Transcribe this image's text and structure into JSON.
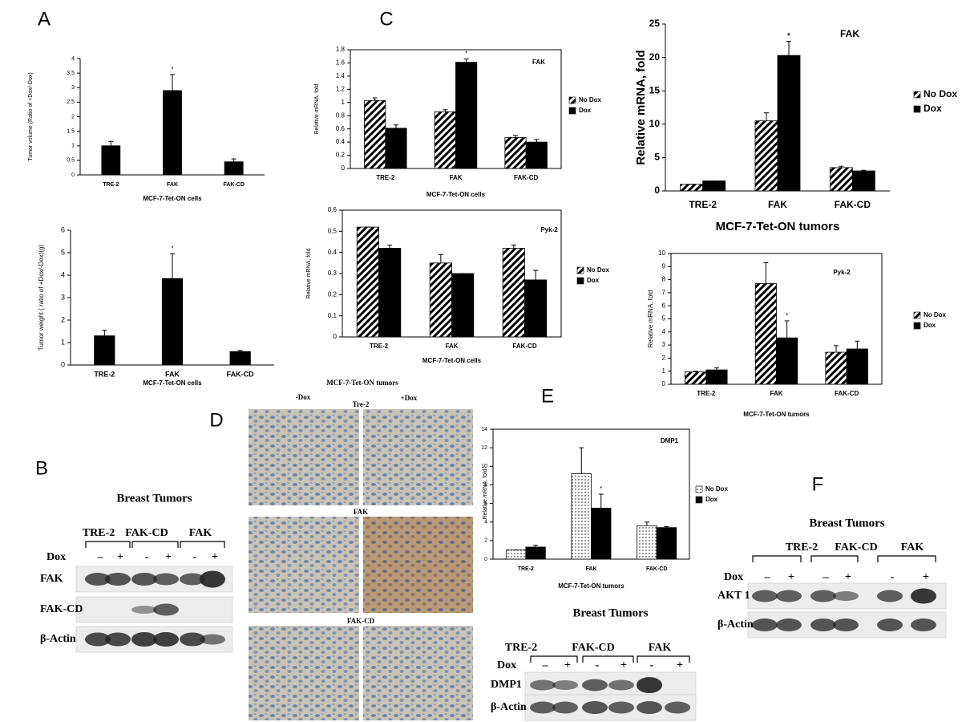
{
  "panel_labels": [
    "A",
    "B",
    "C",
    "D",
    "E",
    "F"
  ],
  "chart_data": [
    {
      "type": "bar",
      "ylabel": "Tumor volume (Ratio of +Dox/-Dox)",
      "xlabel": "MCF-7-Tet-ON cells",
      "categories": [
        "TRE-2",
        "FAK",
        "FAK-CD"
      ],
      "values": [
        1.0,
        2.9,
        0.45
      ],
      "errors": [
        0.15,
        0.55,
        0.1
      ],
      "color": "#000000",
      "ylim": [
        0,
        4
      ],
      "yticks": [
        0,
        0.5,
        1,
        1.5,
        2,
        2.5,
        3,
        3.5,
        4
      ],
      "annotations": [
        {
          "text": "*",
          "x": "FAK"
        }
      ]
    },
    {
      "type": "bar",
      "ylabel": "Tumor weight ( ratio of +Dox/-Dox)(g)",
      "xlabel": "MCF-7-Tet-ON cells",
      "categories": [
        "TRE-2",
        "FAK",
        "FAK-CD"
      ],
      "values": [
        1.3,
        3.85,
        0.6
      ],
      "errors": [
        0.25,
        1.1,
        0.05
      ],
      "color": "#000000",
      "ylim": [
        0,
        6
      ],
      "yticks": [
        0,
        1,
        2,
        3,
        4,
        5,
        6
      ],
      "annotations": [
        {
          "text": "*",
          "x": "FAK"
        }
      ]
    },
    {
      "type": "bar",
      "title": "FAK",
      "ylabel": "Relative mRNA, fold",
      "xlabel": "MCF-7-Tet-ON cells",
      "categories": [
        "TRE-2",
        "FAK",
        "FAK-CD"
      ],
      "series": [
        {
          "name": "No Dox",
          "color": "#ffffff",
          "pattern": "hatch",
          "values": [
            1.03,
            0.86,
            0.47
          ],
          "errors": [
            0.04,
            0.03,
            0.03
          ]
        },
        {
          "name": "Dox",
          "color": "#000000",
          "values": [
            0.61,
            1.61,
            0.4
          ],
          "errors": [
            0.05,
            0.05,
            0.04
          ]
        }
      ],
      "ylim": [
        0,
        1.8
      ],
      "yticks": [
        0,
        0.2,
        0.4,
        0.6,
        0.8,
        1,
        1.2,
        1.4,
        1.6,
        1.8
      ],
      "annotations": [
        {
          "text": "*",
          "x": "FAK",
          "series": "Dox"
        }
      ]
    },
    {
      "type": "bar",
      "title": "Pyk-2",
      "ylabel": "Relative mRNA, fold",
      "xlabel": "MCF-7-Tet-ON cells",
      "categories": [
        "TRE-2",
        "FAK",
        "FAK-CD"
      ],
      "series": [
        {
          "name": "No Dox",
          "color": "#ffffff",
          "pattern": "hatch",
          "values": [
            0.52,
            0.35,
            0.42
          ],
          "errors": [
            0.0,
            0.04,
            0.015
          ]
        },
        {
          "name": "Dox",
          "color": "#000000",
          "values": [
            0.42,
            0.3,
            0.27
          ],
          "errors": [
            0.015,
            0.0,
            0.045
          ]
        }
      ],
      "ylim": [
        0,
        0.6
      ],
      "yticks": [
        0,
        0.1,
        0.2,
        0.3,
        0.4,
        0.5,
        0.6
      ]
    },
    {
      "type": "bar",
      "title": "FAK",
      "ylabel": "Relative mRNA, fold",
      "xlabel": "MCF-7-Tet-ON tumors",
      "categories": [
        "TRE-2",
        "FAK",
        "FAK-CD"
      ],
      "series": [
        {
          "name": "No Dox",
          "color": "#ffffff",
          "pattern": "hatch",
          "values": [
            1.0,
            10.5,
            3.5
          ],
          "errors": [
            0.0,
            1.2,
            0.2
          ]
        },
        {
          "name": "Dox",
          "color": "#000000",
          "values": [
            1.5,
            20.3,
            3.0
          ],
          "errors": [
            0.0,
            2.1,
            0.1
          ]
        }
      ],
      "ylim": [
        0,
        25
      ],
      "yticks": [
        0,
        5,
        10,
        15,
        20,
        25
      ],
      "annotations": [
        {
          "text": "*",
          "x": "FAK",
          "series": "Dox"
        }
      ]
    },
    {
      "type": "bar",
      "title": "Pyk-2",
      "ylabel": "Relative mRNA, fold",
      "xlabel": "MCF-7-Tet-ON tumors",
      "categories": [
        "TRE-2",
        "FAK",
        "FAK-CD"
      ],
      "series": [
        {
          "name": "No Dox",
          "color": "#ffffff",
          "pattern": "hatch",
          "values": [
            0.95,
            7.7,
            2.45
          ],
          "errors": [
            0.05,
            1.6,
            0.5
          ]
        },
        {
          "name": "Dox",
          "color": "#000000",
          "values": [
            1.1,
            3.55,
            2.7
          ],
          "errors": [
            0.15,
            1.3,
            0.6
          ]
        }
      ],
      "ylim": [
        0,
        10
      ],
      "yticks": [
        0,
        1,
        2,
        3,
        4,
        5,
        6,
        7,
        8,
        9,
        10
      ],
      "annotations": [
        {
          "text": "*",
          "x": "FAK",
          "series": "Dox"
        }
      ]
    },
    {
      "type": "bar",
      "title": "DMP1",
      "ylabel": "Relative mRNA, fold",
      "xlabel": "MCF-7-Tet-ON tumors",
      "categories": [
        "TRE-2",
        "FAK",
        "FAK-CD"
      ],
      "series": [
        {
          "name": "No Dox",
          "color": "#ffffff",
          "pattern": "dots",
          "values": [
            1.0,
            9.2,
            3.6
          ],
          "errors": [
            0.0,
            2.8,
            0.4
          ]
        },
        {
          "name": "Dox",
          "color": "#000000",
          "values": [
            1.3,
            5.5,
            3.4
          ],
          "errors": [
            0.2,
            1.5,
            0.1
          ]
        }
      ],
      "ylim": [
        0,
        14
      ],
      "yticks": [
        0,
        2,
        4,
        6,
        8,
        10,
        12,
        14
      ],
      "annotations": [
        {
          "text": "*",
          "x": "FAK",
          "series": "Dox"
        }
      ]
    }
  ],
  "blots": [
    {
      "title": "Breast Tumors",
      "groups": [
        "TRE-2",
        "FAK-CD",
        "FAK"
      ],
      "dox_label": "Dox",
      "signs": [
        "–",
        "+",
        "-",
        "+",
        "-",
        "+"
      ],
      "rows": [
        "FAK",
        "FAK-CD",
        "β-Actin"
      ]
    },
    {
      "title": "Breast Tumors",
      "groups": [
        "TRE-2",
        "FAK-CD",
        "FAK"
      ],
      "dox_label": "Dox",
      "signs": [
        "–",
        "+",
        "-",
        "+",
        "-",
        "+"
      ],
      "rows": [
        "DMP1",
        "β-Actin"
      ]
    },
    {
      "title": "Breast Tumors",
      "groups": [
        "TRE-2",
        "FAK-CD",
        "FAK"
      ],
      "dox_label": "Dox",
      "signs": [
        "–",
        "+",
        "–",
        "+",
        "-",
        "+"
      ],
      "rows": [
        "AKT 1",
        "β-Actin"
      ]
    }
  ],
  "ihc": {
    "title": "MCF-7-Tet-ON tumors",
    "left": "-Dox",
    "right": "+Dox",
    "rows": [
      "Tre-2",
      "FAK",
      "FAK-CD"
    ]
  }
}
